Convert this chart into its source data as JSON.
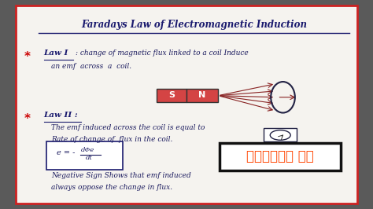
{
  "title": "Faradays Law of Electromagnetic Induction",
  "bg_color": "#5a5a5a",
  "paper_color": "#f5f3ef",
  "border_color": "#cc2222",
  "title_color": "#1a1a6e",
  "law1_text1": ": change of magnetic flux linked to a coil Induce",
  "law1_text2": "an emf  across  a  coil.",
  "law2_text1": "The emf induced across the coil is equal to",
  "law2_text2": "Rate of change of  flux in the coil.",
  "law2_text3": "Negative Sign Shows that emf induced",
  "law2_text4": "always oppose the change in flux.",
  "telugu_text": "తెలుగు లో",
  "star_color": "#cc0000",
  "law_label_color": "#1a1a6e",
  "text_color": "#1a1a5e",
  "arrow_color": "#882222",
  "formula_box_color": "#1a1a6e",
  "telugu_color": "#ff4400",
  "telugu_box_color": "#111111"
}
